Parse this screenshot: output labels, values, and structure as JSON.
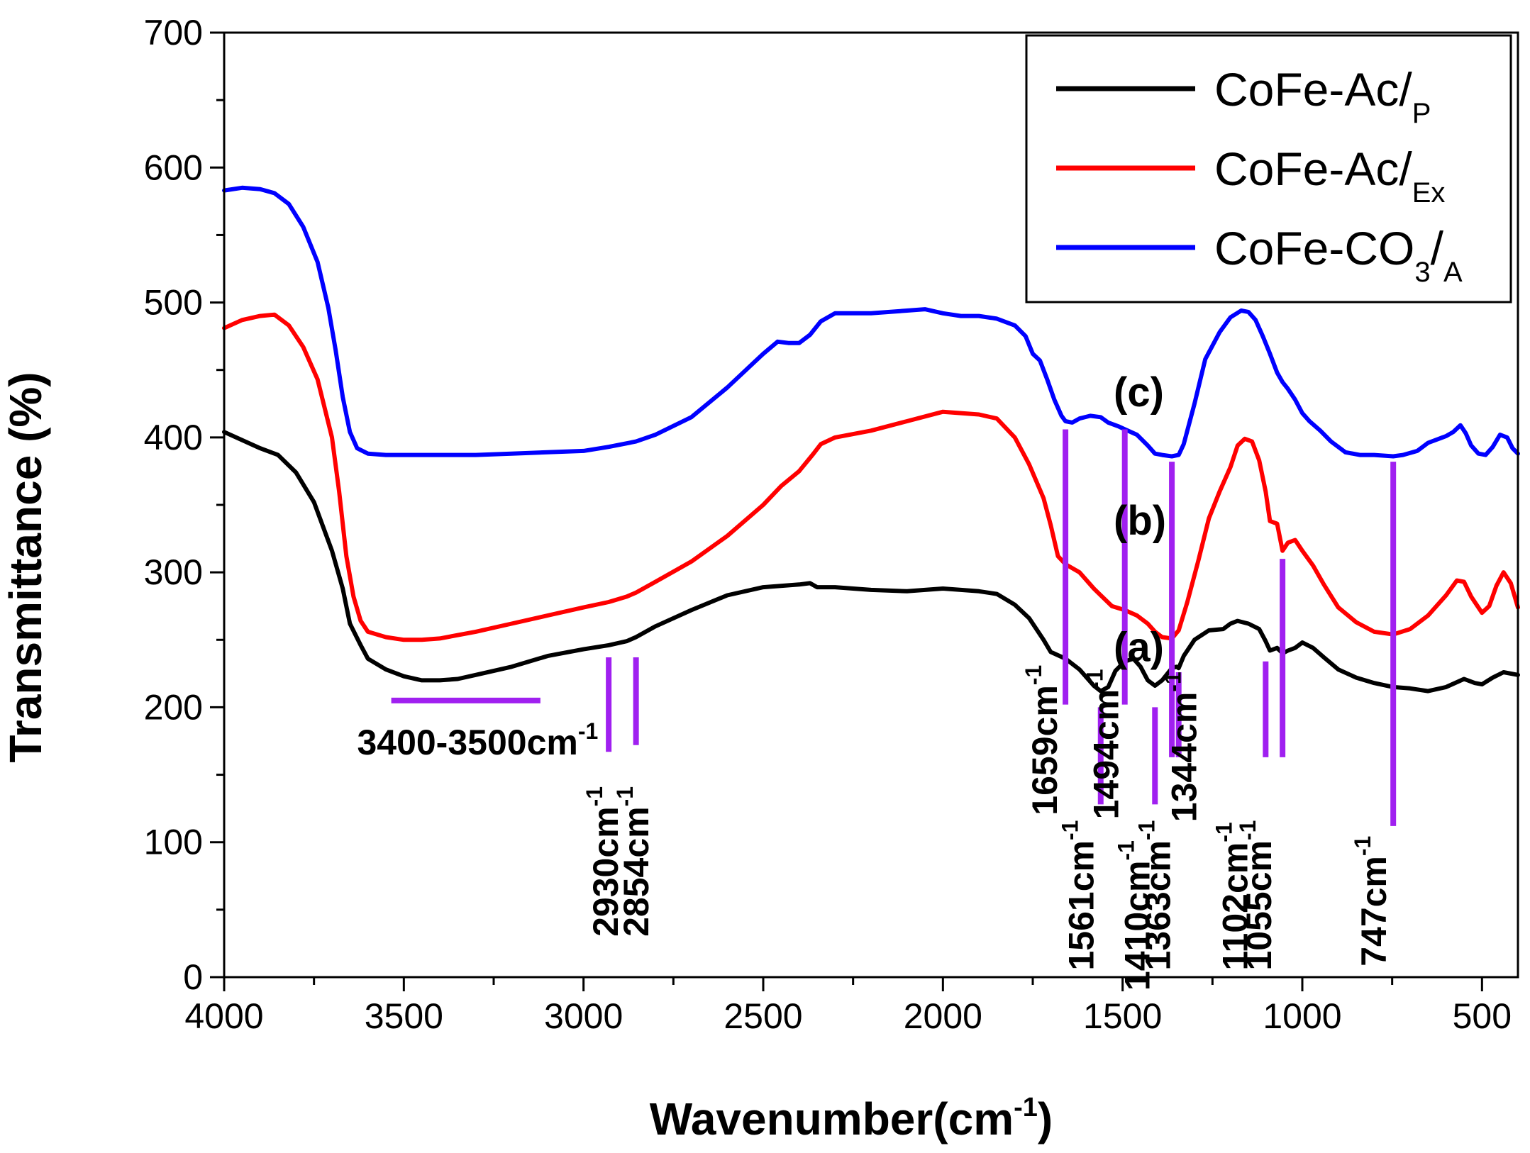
{
  "chart_data": {
    "type": "line",
    "title": "",
    "xlabel": "Wavenumber(cm",
    "xlabel_sup": "-1",
    "xlabel_close": ")",
    "ylabel": "Transmittance (%)",
    "xlim": [
      4000,
      400
    ],
    "ylim": [
      0,
      700
    ],
    "x_ticks": [
      4000,
      3500,
      3000,
      2500,
      2000,
      1500,
      1000,
      500
    ],
    "y_ticks": [
      0,
      100,
      200,
      300,
      400,
      500,
      600,
      700
    ],
    "legend_position": "top-right",
    "series": [
      {
        "name": "CoFe-Ac/",
        "name_sub": "P",
        "curve_label": "(a)",
        "label_at": [
          1525,
          234
        ],
        "color": "#000000",
        "points": [
          [
            4000,
            404
          ],
          [
            3900,
            392
          ],
          [
            3850,
            387
          ],
          [
            3800,
            374
          ],
          [
            3750,
            352
          ],
          [
            3700,
            316
          ],
          [
            3670,
            288
          ],
          [
            3650,
            262
          ],
          [
            3620,
            246
          ],
          [
            3600,
            236
          ],
          [
            3550,
            228
          ],
          [
            3500,
            223
          ],
          [
            3450,
            220
          ],
          [
            3400,
            220
          ],
          [
            3350,
            221
          ],
          [
            3300,
            224
          ],
          [
            3200,
            230
          ],
          [
            3100,
            238
          ],
          [
            3000,
            243
          ],
          [
            2930,
            246
          ],
          [
            2880,
            249
          ],
          [
            2854,
            252
          ],
          [
            2800,
            260
          ],
          [
            2700,
            272
          ],
          [
            2600,
            283
          ],
          [
            2500,
            289
          ],
          [
            2400,
            291
          ],
          [
            2370,
            292
          ],
          [
            2350,
            289
          ],
          [
            2300,
            289
          ],
          [
            2200,
            287
          ],
          [
            2100,
            286
          ],
          [
            2000,
            288
          ],
          [
            1950,
            287
          ],
          [
            1900,
            286
          ],
          [
            1850,
            284
          ],
          [
            1800,
            276
          ],
          [
            1760,
            266
          ],
          [
            1720,
            250
          ],
          [
            1700,
            241
          ],
          [
            1659,
            236
          ],
          [
            1620,
            228
          ],
          [
            1580,
            216
          ],
          [
            1561,
            212
          ],
          [
            1540,
            215
          ],
          [
            1520,
            227
          ],
          [
            1494,
            234
          ],
          [
            1470,
            236
          ],
          [
            1450,
            230
          ],
          [
            1430,
            220
          ],
          [
            1410,
            216
          ],
          [
            1390,
            220
          ],
          [
            1363,
            229
          ],
          [
            1350,
            230
          ],
          [
            1344,
            229
          ],
          [
            1330,
            238
          ],
          [
            1300,
            250
          ],
          [
            1260,
            257
          ],
          [
            1220,
            258
          ],
          [
            1200,
            262
          ],
          [
            1180,
            264
          ],
          [
            1150,
            262
          ],
          [
            1120,
            258
          ],
          [
            1102,
            249
          ],
          [
            1090,
            242
          ],
          [
            1070,
            244
          ],
          [
            1055,
            240
          ],
          [
            1040,
            242
          ],
          [
            1020,
            244
          ],
          [
            1000,
            248
          ],
          [
            970,
            244
          ],
          [
            940,
            237
          ],
          [
            900,
            228
          ],
          [
            850,
            222
          ],
          [
            800,
            218
          ],
          [
            747,
            215
          ],
          [
            700,
            214
          ],
          [
            650,
            212
          ],
          [
            600,
            215
          ],
          [
            550,
            221
          ],
          [
            520,
            218
          ],
          [
            500,
            217
          ],
          [
            470,
            222
          ],
          [
            440,
            226
          ],
          [
            400,
            224
          ]
        ]
      },
      {
        "name": "CoFe-Ac/",
        "name_sub": "Ex",
        "curve_label": "(b)",
        "label_at": [
          1525,
          328
        ],
        "color": "#ff0000",
        "points": [
          [
            4000,
            481
          ],
          [
            3950,
            487
          ],
          [
            3900,
            490
          ],
          [
            3860,
            491
          ],
          [
            3820,
            483
          ],
          [
            3780,
            467
          ],
          [
            3740,
            443
          ],
          [
            3700,
            400
          ],
          [
            3680,
            360
          ],
          [
            3660,
            312
          ],
          [
            3640,
            282
          ],
          [
            3620,
            264
          ],
          [
            3600,
            256
          ],
          [
            3550,
            252
          ],
          [
            3500,
            250
          ],
          [
            3450,
            250
          ],
          [
            3400,
            251
          ],
          [
            3300,
            256
          ],
          [
            3200,
            262
          ],
          [
            3100,
            268
          ],
          [
            3000,
            274
          ],
          [
            2930,
            278
          ],
          [
            2880,
            282
          ],
          [
            2854,
            285
          ],
          [
            2800,
            293
          ],
          [
            2700,
            308
          ],
          [
            2600,
            327
          ],
          [
            2500,
            350
          ],
          [
            2450,
            364
          ],
          [
            2400,
            375
          ],
          [
            2360,
            388
          ],
          [
            2340,
            395
          ],
          [
            2300,
            400
          ],
          [
            2200,
            405
          ],
          [
            2100,
            412
          ],
          [
            2000,
            419
          ],
          [
            1950,
            418
          ],
          [
            1900,
            417
          ],
          [
            1850,
            414
          ],
          [
            1800,
            400
          ],
          [
            1760,
            380
          ],
          [
            1720,
            355
          ],
          [
            1700,
            335
          ],
          [
            1680,
            312
          ],
          [
            1659,
            306
          ],
          [
            1620,
            300
          ],
          [
            1580,
            288
          ],
          [
            1561,
            283
          ],
          [
            1530,
            275
          ],
          [
            1494,
            272
          ],
          [
            1460,
            268
          ],
          [
            1430,
            262
          ],
          [
            1410,
            256
          ],
          [
            1390,
            252
          ],
          [
            1363,
            251
          ],
          [
            1344,
            257
          ],
          [
            1320,
            278
          ],
          [
            1290,
            308
          ],
          [
            1260,
            340
          ],
          [
            1230,
            360
          ],
          [
            1200,
            378
          ],
          [
            1180,
            394
          ],
          [
            1160,
            399
          ],
          [
            1140,
            397
          ],
          [
            1120,
            383
          ],
          [
            1102,
            360
          ],
          [
            1090,
            338
          ],
          [
            1070,
            336
          ],
          [
            1055,
            316
          ],
          [
            1040,
            322
          ],
          [
            1020,
            324
          ],
          [
            1000,
            316
          ],
          [
            970,
            305
          ],
          [
            940,
            291
          ],
          [
            900,
            274
          ],
          [
            850,
            263
          ],
          [
            800,
            256
          ],
          [
            747,
            254
          ],
          [
            700,
            258
          ],
          [
            650,
            268
          ],
          [
            600,
            283
          ],
          [
            570,
            294
          ],
          [
            550,
            293
          ],
          [
            530,
            282
          ],
          [
            500,
            270
          ],
          [
            480,
            275
          ],
          [
            460,
            290
          ],
          [
            440,
            300
          ],
          [
            420,
            292
          ],
          [
            400,
            274
          ]
        ]
      },
      {
        "name": "CoFe-CO",
        "name_sub": "3",
        "name_tail": "/",
        "name_tail_sub": "A",
        "curve_label": "(c)",
        "label_at": [
          1525,
          423
        ],
        "color": "#0000ff",
        "points": [
          [
            4000,
            583
          ],
          [
            3950,
            585
          ],
          [
            3900,
            584
          ],
          [
            3860,
            581
          ],
          [
            3820,
            573
          ],
          [
            3780,
            556
          ],
          [
            3740,
            530
          ],
          [
            3710,
            496
          ],
          [
            3690,
            465
          ],
          [
            3670,
            430
          ],
          [
            3650,
            404
          ],
          [
            3630,
            392
          ],
          [
            3600,
            388
          ],
          [
            3550,
            387
          ],
          [
            3500,
            387
          ],
          [
            3400,
            387
          ],
          [
            3300,
            387
          ],
          [
            3200,
            388
          ],
          [
            3100,
            389
          ],
          [
            3000,
            390
          ],
          [
            2930,
            393
          ],
          [
            2854,
            397
          ],
          [
            2800,
            402
          ],
          [
            2700,
            415
          ],
          [
            2600,
            437
          ],
          [
            2500,
            462
          ],
          [
            2460,
            471
          ],
          [
            2430,
            470
          ],
          [
            2400,
            470
          ],
          [
            2370,
            476
          ],
          [
            2340,
            486
          ],
          [
            2300,
            492
          ],
          [
            2250,
            492
          ],
          [
            2200,
            492
          ],
          [
            2100,
            494
          ],
          [
            2050,
            495
          ],
          [
            2000,
            492
          ],
          [
            1950,
            490
          ],
          [
            1900,
            490
          ],
          [
            1850,
            488
          ],
          [
            1800,
            483
          ],
          [
            1770,
            475
          ],
          [
            1750,
            462
          ],
          [
            1730,
            457
          ],
          [
            1710,
            443
          ],
          [
            1690,
            428
          ],
          [
            1670,
            416
          ],
          [
            1659,
            412
          ],
          [
            1640,
            411
          ],
          [
            1620,
            414
          ],
          [
            1590,
            416
          ],
          [
            1561,
            415
          ],
          [
            1540,
            411
          ],
          [
            1510,
            408
          ],
          [
            1494,
            406
          ],
          [
            1460,
            402
          ],
          [
            1430,
            394
          ],
          [
            1410,
            388
          ],
          [
            1390,
            387
          ],
          [
            1363,
            386
          ],
          [
            1344,
            387
          ],
          [
            1330,
            395
          ],
          [
            1300,
            425
          ],
          [
            1270,
            458
          ],
          [
            1230,
            478
          ],
          [
            1200,
            489
          ],
          [
            1170,
            494
          ],
          [
            1150,
            493
          ],
          [
            1130,
            487
          ],
          [
            1110,
            475
          ],
          [
            1090,
            462
          ],
          [
            1070,
            448
          ],
          [
            1055,
            441
          ],
          [
            1040,
            436
          ],
          [
            1020,
            428
          ],
          [
            1000,
            418
          ],
          [
            980,
            412
          ],
          [
            950,
            405
          ],
          [
            920,
            397
          ],
          [
            880,
            389
          ],
          [
            840,
            387
          ],
          [
            800,
            387
          ],
          [
            747,
            386
          ],
          [
            720,
            387
          ],
          [
            680,
            390
          ],
          [
            650,
            396
          ],
          [
            620,
            399
          ],
          [
            600,
            401
          ],
          [
            580,
            404
          ],
          [
            560,
            409
          ],
          [
            545,
            403
          ],
          [
            530,
            394
          ],
          [
            510,
            388
          ],
          [
            490,
            387
          ],
          [
            470,
            393
          ],
          [
            450,
            402
          ],
          [
            430,
            400
          ],
          [
            415,
            392
          ],
          [
            400,
            388
          ]
        ]
      }
    ],
    "marker_color": "#a020f0",
    "markers": [
      {
        "x": 1659,
        "y0": 202,
        "y1": 406
      },
      {
        "x": 1561,
        "y0": 128,
        "y1": 200
      },
      {
        "x": 1494,
        "y0": 202,
        "y1": 406
      },
      {
        "x": 1410,
        "y0": 128,
        "y1": 200
      },
      {
        "x": 1363,
        "y0": 163,
        "y1": 382
      },
      {
        "x": 1344,
        "y0": 163,
        "y1": 226
      },
      {
        "x": 1102,
        "y0": 163,
        "y1": 234
      },
      {
        "x": 1055,
        "y0": 163,
        "y1": 310
      },
      {
        "x": 747,
        "y0": 112,
        "y1": 382
      },
      {
        "x": 2930,
        "y0": 167,
        "y1": 237
      },
      {
        "x": 2854,
        "y0": 172,
        "y1": 237
      }
    ],
    "range_marker": {
      "x0": 3535,
      "x1": 3120,
      "y": 205
    },
    "annotations": [
      {
        "text": "3400-3500cm",
        "sup": "-1",
        "x": 3630,
        "y": 165,
        "rotate": false
      },
      {
        "text": "2930cm",
        "sup": "-1",
        "x": 2905,
        "y": 30,
        "rotate": true
      },
      {
        "text": "2854cm",
        "sup": "-1",
        "x": 2820,
        "y": 30,
        "rotate": true
      },
      {
        "text": "1659cm",
        "sup": "-1",
        "x": 1683,
        "y": 120,
        "rotate": true
      },
      {
        "text": "1561cm",
        "sup": "-1",
        "x": 1581,
        "y": 5,
        "rotate": true
      },
      {
        "text": "1494cm",
        "sup": "-1",
        "x": 1512,
        "y": 117,
        "rotate": true
      },
      {
        "text": "1410cm",
        "sup": "-1",
        "x": 1425,
        "y": -10,
        "rotate": true
      },
      {
        "text": "1363cm",
        "sup": "-1",
        "x": 1368,
        "y": 5,
        "rotate": true
      },
      {
        "text": "1344cm",
        "sup": "-1",
        "x": 1295,
        "y": 115,
        "rotate": true
      },
      {
        "text": "1102cm",
        "sup": "-1",
        "x": 1153,
        "y": 5,
        "rotate": true
      },
      {
        "text": "1055cm",
        "sup": "-1",
        "x": 1087,
        "y": 5,
        "rotate": true
      },
      {
        "text": "747cm",
        "sup": "-1",
        "x": 767,
        "y": 8,
        "rotate": true
      }
    ]
  }
}
